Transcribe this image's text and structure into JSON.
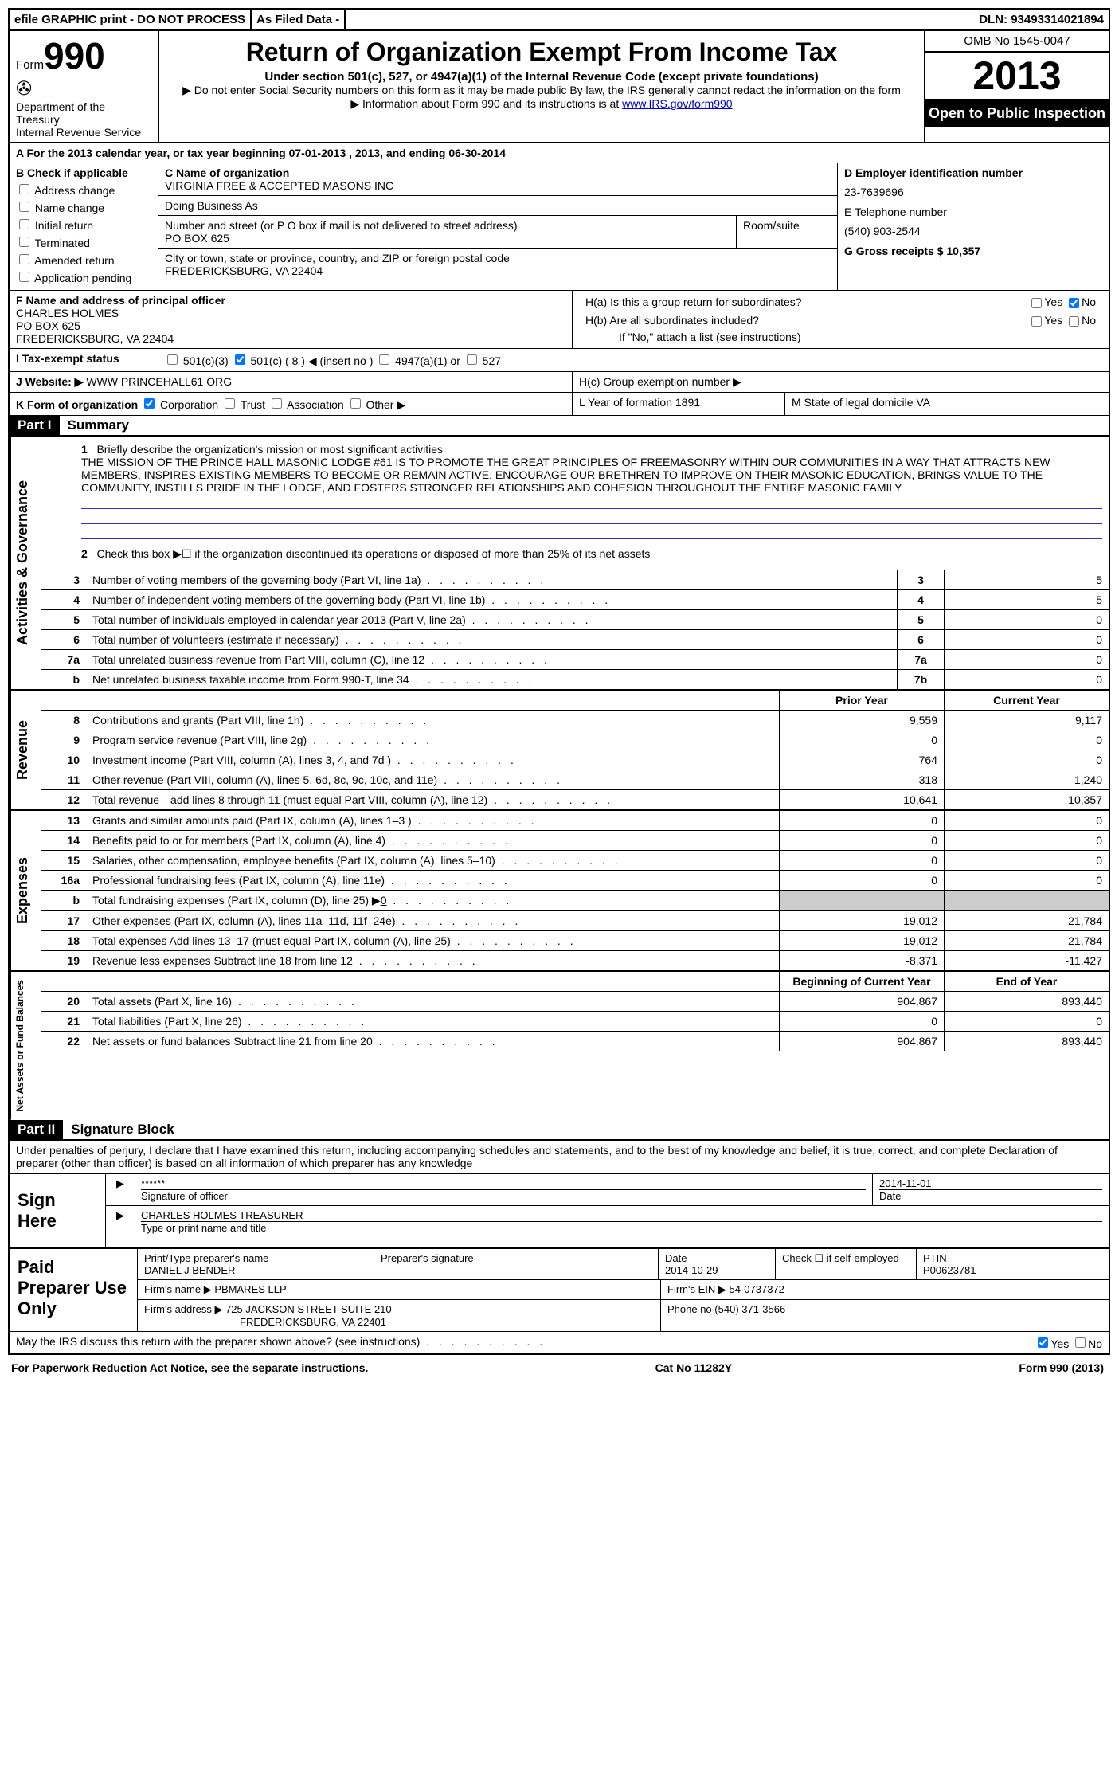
{
  "top_bar": {
    "efile": "efile GRAPHIC print - DO NOT PROCESS",
    "as_filed": "As Filed Data -",
    "dln": "DLN: 93493314021894"
  },
  "header": {
    "form_prefix": "Form",
    "form_num": "990",
    "dept": "Department of the Treasury",
    "irs": "Internal Revenue Service",
    "title": "Return of Organization Exempt From Income Tax",
    "subtitle": "Under section 501(c), 527, or 4947(a)(1) of the Internal Revenue Code (except private foundations)",
    "note1": "▶ Do not enter Social Security numbers on this form as it may be made public  By law, the IRS generally cannot redact the information on the form",
    "note2_prefix": "▶ Information about Form 990 and its instructions is at ",
    "note2_link": "www.IRS.gov/form990",
    "omb": "OMB No  1545-0047",
    "year": "2013",
    "open_public": "Open to Public Inspection"
  },
  "row_a": "A  For the 2013 calendar year, or tax year beginning 07-01-2013    , 2013, and ending 06-30-2014",
  "col_b": {
    "label": "B  Check if applicable",
    "items": [
      "Address change",
      "Name change",
      "Initial return",
      "Terminated",
      "Amended return",
      "Application pending"
    ]
  },
  "col_c": {
    "name_label": "C Name of organization",
    "name": "VIRGINIA FREE & ACCEPTED MASONS INC",
    "dba_label": "Doing Business As",
    "dba": "",
    "street_label": "Number and street (or P O  box if mail is not delivered to street address)",
    "street": "PO BOX 625",
    "room_label": "Room/suite",
    "city_label": "City or town, state or province, country, and ZIP or foreign postal code",
    "city": "FREDERICKSBURG, VA  22404"
  },
  "col_d": {
    "ein_label": "D Employer identification number",
    "ein": "23-7639696",
    "phone_label": "E Telephone number",
    "phone": "(540) 903-2544",
    "gross_label": "G Gross receipts $ 10,357"
  },
  "col_f": {
    "label": "F  Name and address of principal officer",
    "name": "CHARLES HOLMES",
    "addr1": "PO BOX 625",
    "addr2": "FREDERICKSBURG, VA  22404"
  },
  "col_h": {
    "ha": "H(a)  Is this a group return for subordinates?",
    "hb": "H(b)  Are all subordinates included?",
    "hb_note": "If \"No,\" attach a list  (see instructions)",
    "hc": "H(c)   Group exemption number ▶"
  },
  "row_i": {
    "label": "I   Tax-exempt status",
    "opts": [
      "501(c)(3)",
      "501(c) ( 8 ) ◀ (insert no )",
      "4947(a)(1) or",
      "527"
    ]
  },
  "row_j": {
    "label": "J   Website: ▶",
    "value": "WWW PRINCEHALL61 ORG"
  },
  "row_k": {
    "label": "K Form of organization",
    "opts": [
      "Corporation",
      "Trust",
      "Association",
      "Other ▶"
    ],
    "l_label": "L Year of formation  1891",
    "m_label": "M State of legal domicile  VA"
  },
  "part1": {
    "header": "Part I",
    "title": "Summary"
  },
  "mission": {
    "num": "1",
    "label": "Briefly describe the organization's mission or most significant activities",
    "text": "THE MISSION OF THE PRINCE HALL MASONIC LODGE #61 IS TO PROMOTE THE GREAT PRINCIPLES OF FREEMASONRY WITHIN OUR COMMUNITIES IN A WAY THAT ATTRACTS NEW MEMBERS, INSPIRES EXISTING MEMBERS TO BECOME OR REMAIN ACTIVE, ENCOURAGE OUR BRETHREN TO IMPROVE ON THEIR MASONIC EDUCATION, BRINGS VALUE TO THE COMMUNITY, INSTILLS PRIDE IN THE LODGE, AND FOSTERS STRONGER RELATIONSHIPS AND COHESION THROUGHOUT THE ENTIRE MASONIC FAMILY"
  },
  "line2": {
    "num": "2",
    "text": "Check this box ▶☐ if the organization discontinued its operations or disposed of more than 25% of its net assets"
  },
  "governance_lines": [
    {
      "num": "3",
      "text": "Number of voting members of the governing body (Part VI, line 1a)",
      "box": "3",
      "val": "5"
    },
    {
      "num": "4",
      "text": "Number of independent voting members of the governing body (Part VI, line 1b)",
      "box": "4",
      "val": "5"
    },
    {
      "num": "5",
      "text": "Total number of individuals employed in calendar year 2013 (Part V, line 2a)",
      "box": "5",
      "val": "0"
    },
    {
      "num": "6",
      "text": "Total number of volunteers (estimate if necessary)",
      "box": "6",
      "val": "0"
    },
    {
      "num": "7a",
      "text": "Total unrelated business revenue from Part VIII, column (C), line 12",
      "box": "7a",
      "val": "0"
    },
    {
      "num": "b",
      "text": "Net unrelated business taxable income from Form 990-T, line 34",
      "box": "7b",
      "val": "0"
    }
  ],
  "col_headers": {
    "prior": "Prior Year",
    "current": "Current Year"
  },
  "revenue_lines": [
    {
      "num": "8",
      "text": "Contributions and grants (Part VIII, line 1h)",
      "prior": "9,559",
      "current": "9,117"
    },
    {
      "num": "9",
      "text": "Program service revenue (Part VIII, line 2g)",
      "prior": "0",
      "current": "0"
    },
    {
      "num": "10",
      "text": "Investment income (Part VIII, column (A), lines 3, 4, and 7d )",
      "prior": "764",
      "current": "0"
    },
    {
      "num": "11",
      "text": "Other revenue (Part VIII, column (A), lines 5, 6d, 8c, 9c, 10c, and 11e)",
      "prior": "318",
      "current": "1,240"
    },
    {
      "num": "12",
      "text": "Total revenue—add lines 8 through 11 (must equal Part VIII, column (A), line 12)",
      "prior": "10,641",
      "current": "10,357"
    }
  ],
  "expense_lines": [
    {
      "num": "13",
      "text": "Grants and similar amounts paid (Part IX, column (A), lines 1–3 )",
      "prior": "0",
      "current": "0"
    },
    {
      "num": "14",
      "text": "Benefits paid to or for members (Part IX, column (A), line 4)",
      "prior": "0",
      "current": "0"
    },
    {
      "num": "15",
      "text": "Salaries, other compensation, employee benefits (Part IX, column (A), lines 5–10)",
      "prior": "0",
      "current": "0"
    },
    {
      "num": "16a",
      "text": "Professional fundraising fees (Part IX, column (A), line 11e)",
      "prior": "0",
      "current": "0"
    },
    {
      "num": "b",
      "text": "Total fundraising expenses (Part IX, column (D), line 25) ▶",
      "fund_val": "0",
      "prior": "",
      "current": "",
      "gray": true
    },
    {
      "num": "17",
      "text": "Other expenses (Part IX, column (A), lines 11a–11d, 11f–24e)",
      "prior": "19,012",
      "current": "21,784"
    },
    {
      "num": "18",
      "text": "Total expenses  Add lines 13–17 (must equal Part IX, column (A), line 25)",
      "prior": "19,012",
      "current": "21,784"
    },
    {
      "num": "19",
      "text": "Revenue less expenses  Subtract line 18 from line 12",
      "prior": "-8,371",
      "current": "-11,427"
    }
  ],
  "net_headers": {
    "begin": "Beginning of Current Year",
    "end": "End of Year"
  },
  "net_lines": [
    {
      "num": "20",
      "text": "Total assets (Part X, line 16)",
      "prior": "904,867",
      "current": "893,440"
    },
    {
      "num": "21",
      "text": "Total liabilities (Part X, line 26)",
      "prior": "0",
      "current": "0"
    },
    {
      "num": "22",
      "text": "Net assets or fund balances  Subtract line 21 from line 20",
      "prior": "904,867",
      "current": "893,440"
    }
  ],
  "part2": {
    "header": "Part II",
    "title": "Signature Block",
    "declaration": "Under penalties of perjury, I declare that I have examined this return, including accompanying schedules and statements, and to the best of my knowledge and belief, it is true, correct, and complete  Declaration of preparer (other than officer) is based on all information of which preparer has any knowledge"
  },
  "sign": {
    "label": "Sign Here",
    "sig": "******",
    "sig_label": "Signature of officer",
    "date": "2014-11-01",
    "date_label": "Date",
    "name": "CHARLES HOLMES TREASURER",
    "name_label": "Type or print name and title"
  },
  "paid": {
    "label": "Paid Preparer Use Only",
    "preparer_label": "Print/Type preparer's name",
    "preparer_name": "DANIEL J BENDER",
    "sig_label": "Preparer's signature",
    "date_label": "Date",
    "date": "2014-10-29",
    "self_emp": "Check ☐ if self-employed",
    "ptin_label": "PTIN",
    "ptin": "P00623781",
    "firm_name_label": "Firm's name    ▶",
    "firm_name": "PBMARES LLP",
    "firm_ein_label": "Firm's EIN ▶",
    "firm_ein": "54-0737372",
    "firm_addr_label": "Firm's address ▶",
    "firm_addr1": "725 JACKSON STREET SUITE 210",
    "firm_addr2": "FREDERICKSBURG, VA  22401",
    "phone_label": "Phone no",
    "phone": "(540) 371-3566"
  },
  "discuss": {
    "text": "May the IRS discuss this return with the preparer shown above? (see instructions)",
    "yes": "Yes",
    "no": "No"
  },
  "footer": {
    "left": "For Paperwork Reduction Act Notice, see the separate instructions.",
    "center": "Cat  No  11282Y",
    "right": "Form 990 (2013)"
  },
  "vert_labels": {
    "gov": "Activities & Governance",
    "rev": "Revenue",
    "exp": "Expenses",
    "net": "Net Assets or Fund Balances"
  }
}
